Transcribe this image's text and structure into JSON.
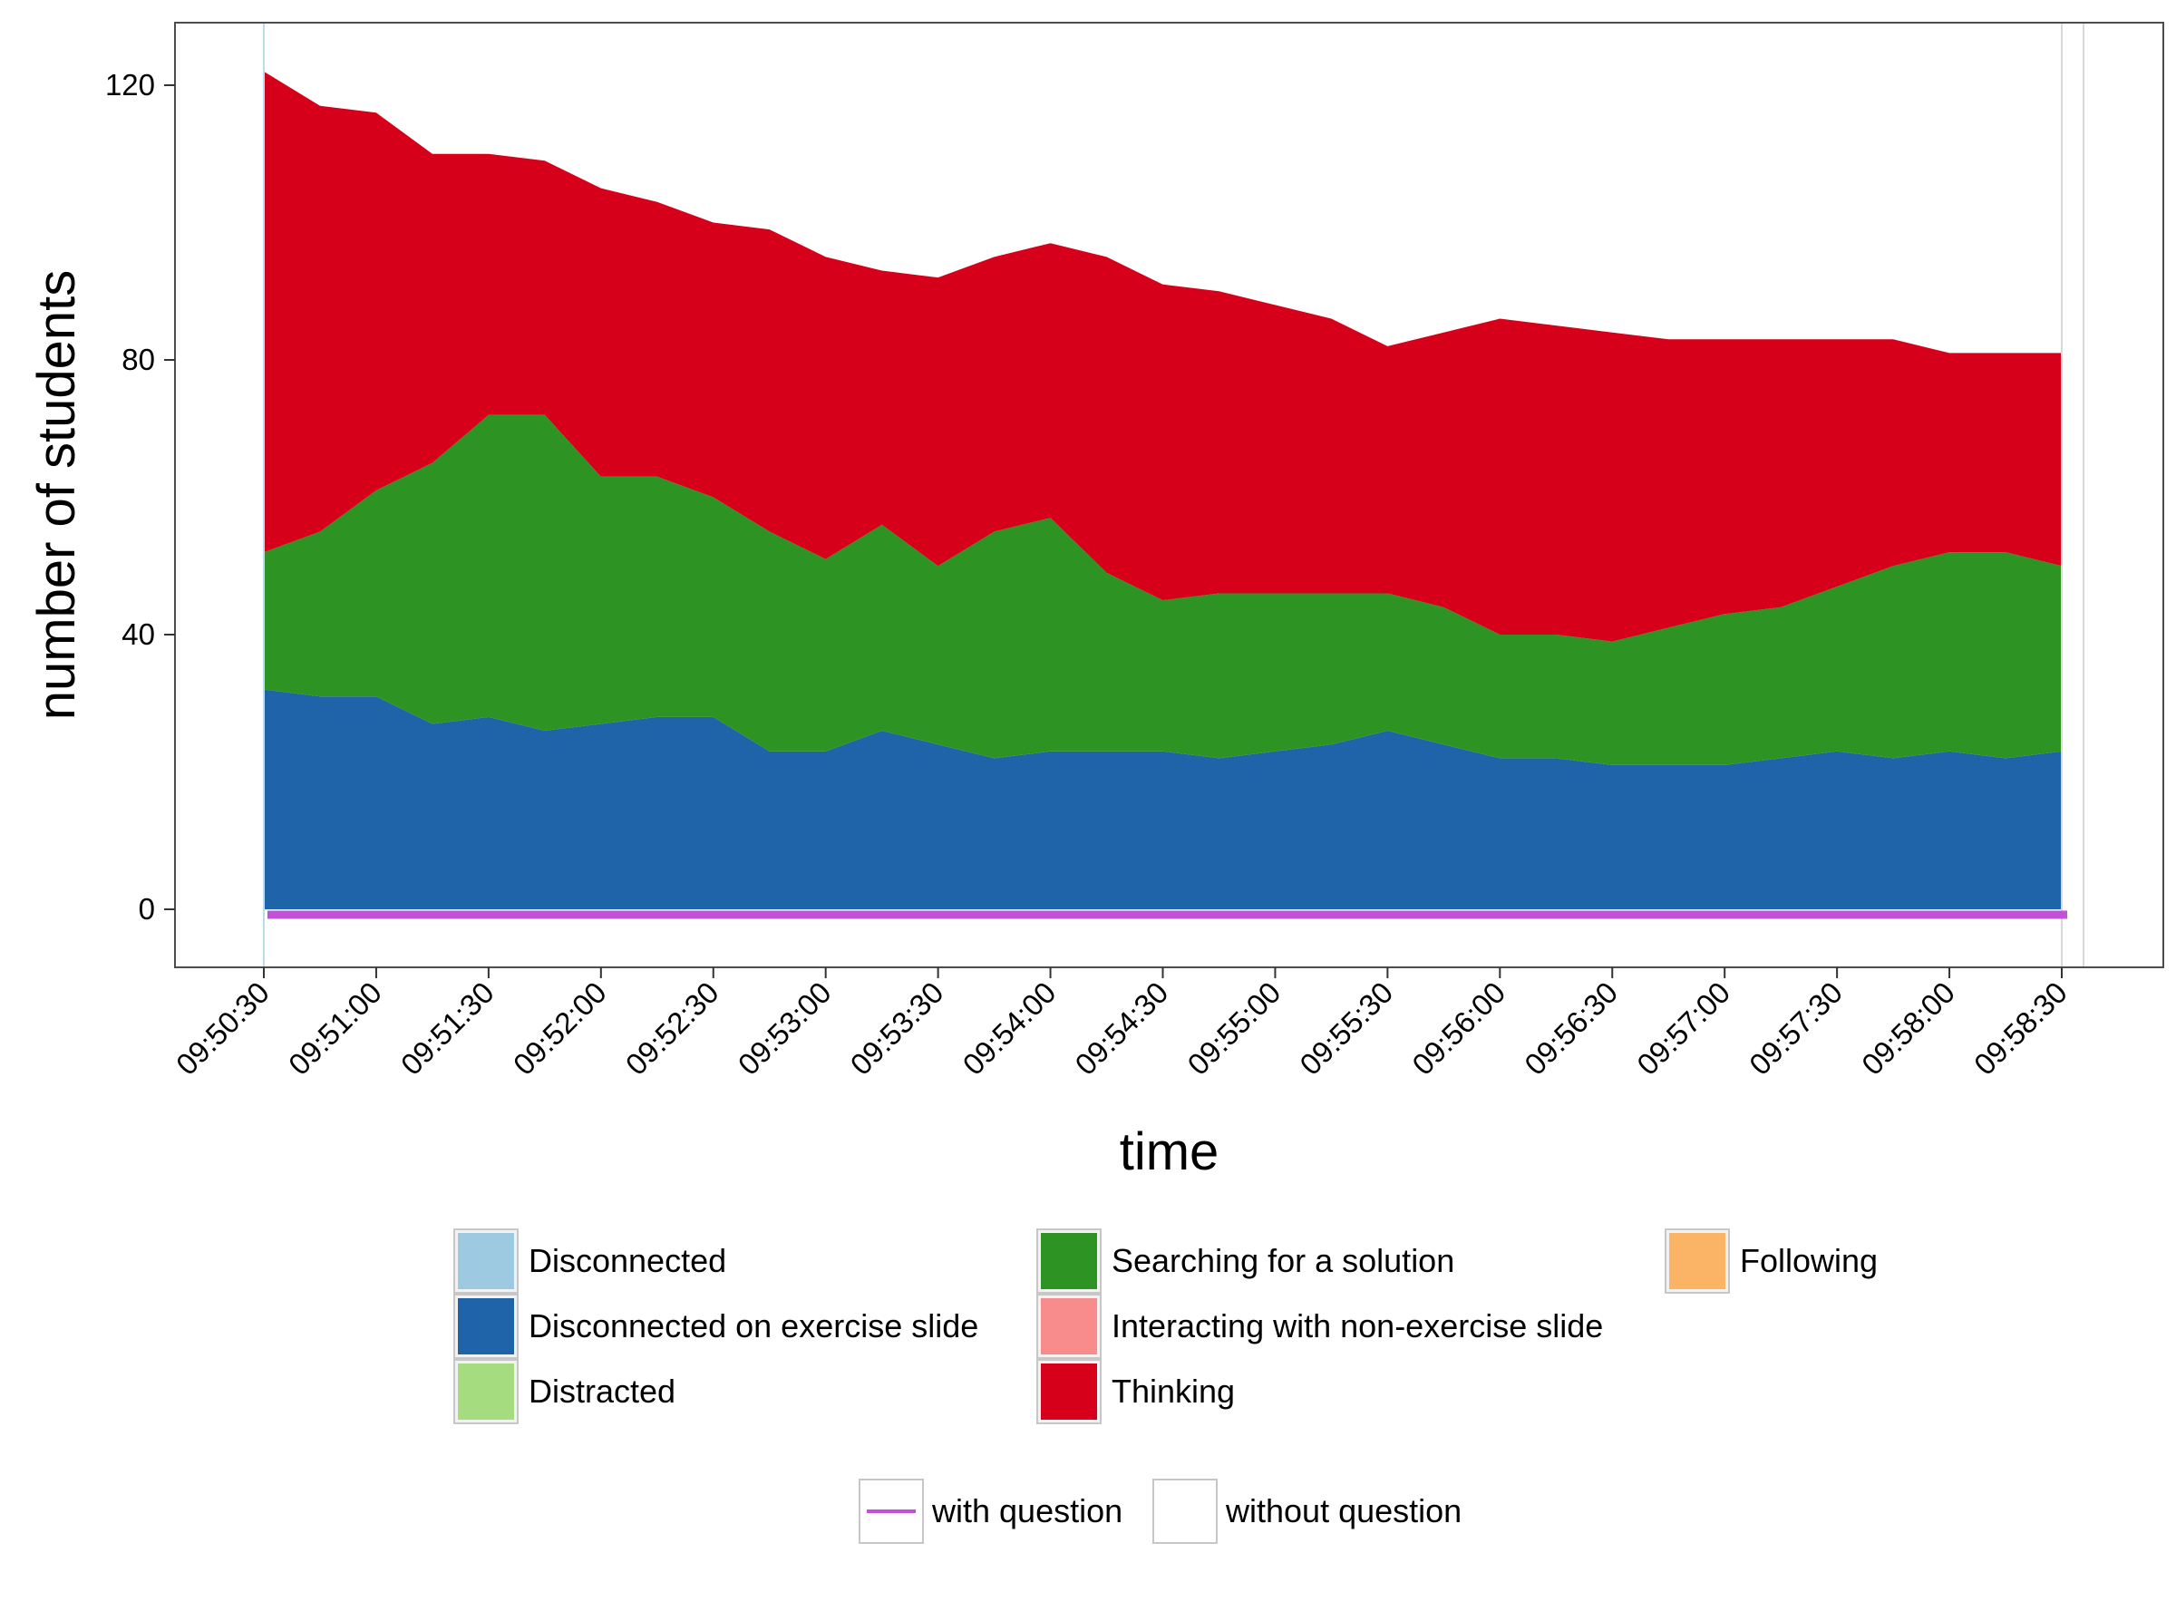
{
  "chart_data": {
    "type": "area",
    "stacked": true,
    "xlabel": "time",
    "ylabel": "number of students",
    "xlim": [
      "09:50:30",
      "09:58:30"
    ],
    "ylim": [
      0,
      120
    ],
    "x_ticks": [
      "09:50:30",
      "09:51:00",
      "09:51:30",
      "09:52:00",
      "09:52:30",
      "09:53:00",
      "09:53:30",
      "09:54:00",
      "09:54:30",
      "09:55:00",
      "09:55:30",
      "09:56:00",
      "09:56:30",
      "09:57:00",
      "09:57:30",
      "09:58:00",
      "09:58:30"
    ],
    "y_ticks": [
      0,
      40,
      80,
      120
    ],
    "grid": false,
    "legend_position": "bottom",
    "x": [
      "09:50:30",
      "09:50:45",
      "09:51:00",
      "09:51:15",
      "09:51:30",
      "09:51:45",
      "09:52:00",
      "09:52:15",
      "09:52:30",
      "09:52:45",
      "09:53:00",
      "09:53:15",
      "09:53:30",
      "09:53:45",
      "09:54:00",
      "09:54:15",
      "09:54:30",
      "09:54:45",
      "09:55:00",
      "09:55:15",
      "09:55:30",
      "09:55:45",
      "09:56:00",
      "09:56:15",
      "09:56:30",
      "09:56:45",
      "09:57:00",
      "09:57:15",
      "09:57:30",
      "09:57:45",
      "09:58:00",
      "09:58:15",
      "09:58:30"
    ],
    "series": [
      {
        "name": "Disconnected",
        "color": "#9ECAE1",
        "values": [
          0,
          0,
          0,
          0,
          0,
          0,
          0,
          0,
          0,
          0,
          0,
          0,
          0,
          0,
          0,
          0,
          0,
          0,
          0,
          0,
          0,
          0,
          0,
          0,
          0,
          0,
          0,
          0,
          0,
          0,
          0,
          0,
          0
        ]
      },
      {
        "name": "Disconnected on exercise slide",
        "color": "#1F63A8",
        "values": [
          32,
          31,
          31,
          27,
          28,
          26,
          27,
          28,
          28,
          23,
          23,
          26,
          24,
          22,
          23,
          23,
          23,
          22,
          23,
          24,
          26,
          24,
          22,
          22,
          21,
          21,
          21,
          22,
          23,
          22,
          23,
          22,
          23
        ]
      },
      {
        "name": "Distracted",
        "color": "#A6DC80",
        "values": [
          0,
          0,
          0,
          0,
          0,
          0,
          0,
          0,
          0,
          0,
          0,
          0,
          0,
          0,
          0,
          0,
          0,
          0,
          0,
          0,
          0,
          0,
          0,
          0,
          0,
          0,
          0,
          0,
          0,
          0,
          0,
          0,
          0
        ]
      },
      {
        "name": "Searching for a solution",
        "color": "#2D9423",
        "values": [
          20,
          24,
          30,
          38,
          44,
          46,
          36,
          35,
          32,
          32,
          28,
          30,
          26,
          33,
          34,
          26,
          22,
          24,
          23,
          22,
          20,
          20,
          18,
          18,
          18,
          20,
          22,
          22,
          24,
          28,
          29,
          30,
          27
        ]
      },
      {
        "name": "Interacting with non-exercise slide",
        "color": "#F88B8B",
        "values": [
          0,
          0,
          0,
          0,
          0,
          0,
          0,
          0,
          0,
          0,
          0,
          0,
          0,
          0,
          0,
          0,
          0,
          0,
          0,
          0,
          0,
          0,
          0,
          0,
          0,
          0,
          0,
          0,
          0,
          0,
          0,
          0,
          0
        ]
      },
      {
        "name": "Thinking",
        "color": "#D7001B",
        "values": [
          70,
          62,
          55,
          45,
          38,
          37,
          42,
          40,
          40,
          44,
          44,
          37,
          42,
          40,
          40,
          46,
          46,
          44,
          42,
          40,
          36,
          40,
          46,
          45,
          45,
          42,
          40,
          39,
          36,
          33,
          29,
          29,
          31
        ]
      },
      {
        "name": "Following",
        "color": "#FBB366",
        "values": [
          0,
          0,
          0,
          0,
          0,
          0,
          0,
          0,
          0,
          0,
          0,
          0,
          0,
          0,
          0,
          0,
          0,
          0,
          0,
          0,
          0,
          0,
          0,
          0,
          0,
          0,
          0,
          0,
          0,
          0,
          0,
          0,
          0
        ]
      }
    ],
    "lines": [
      {
        "name": "with question",
        "color": "#C251D8",
        "value": 0
      },
      {
        "name": "without question",
        "color": "#D9D9D9"
      }
    ]
  }
}
